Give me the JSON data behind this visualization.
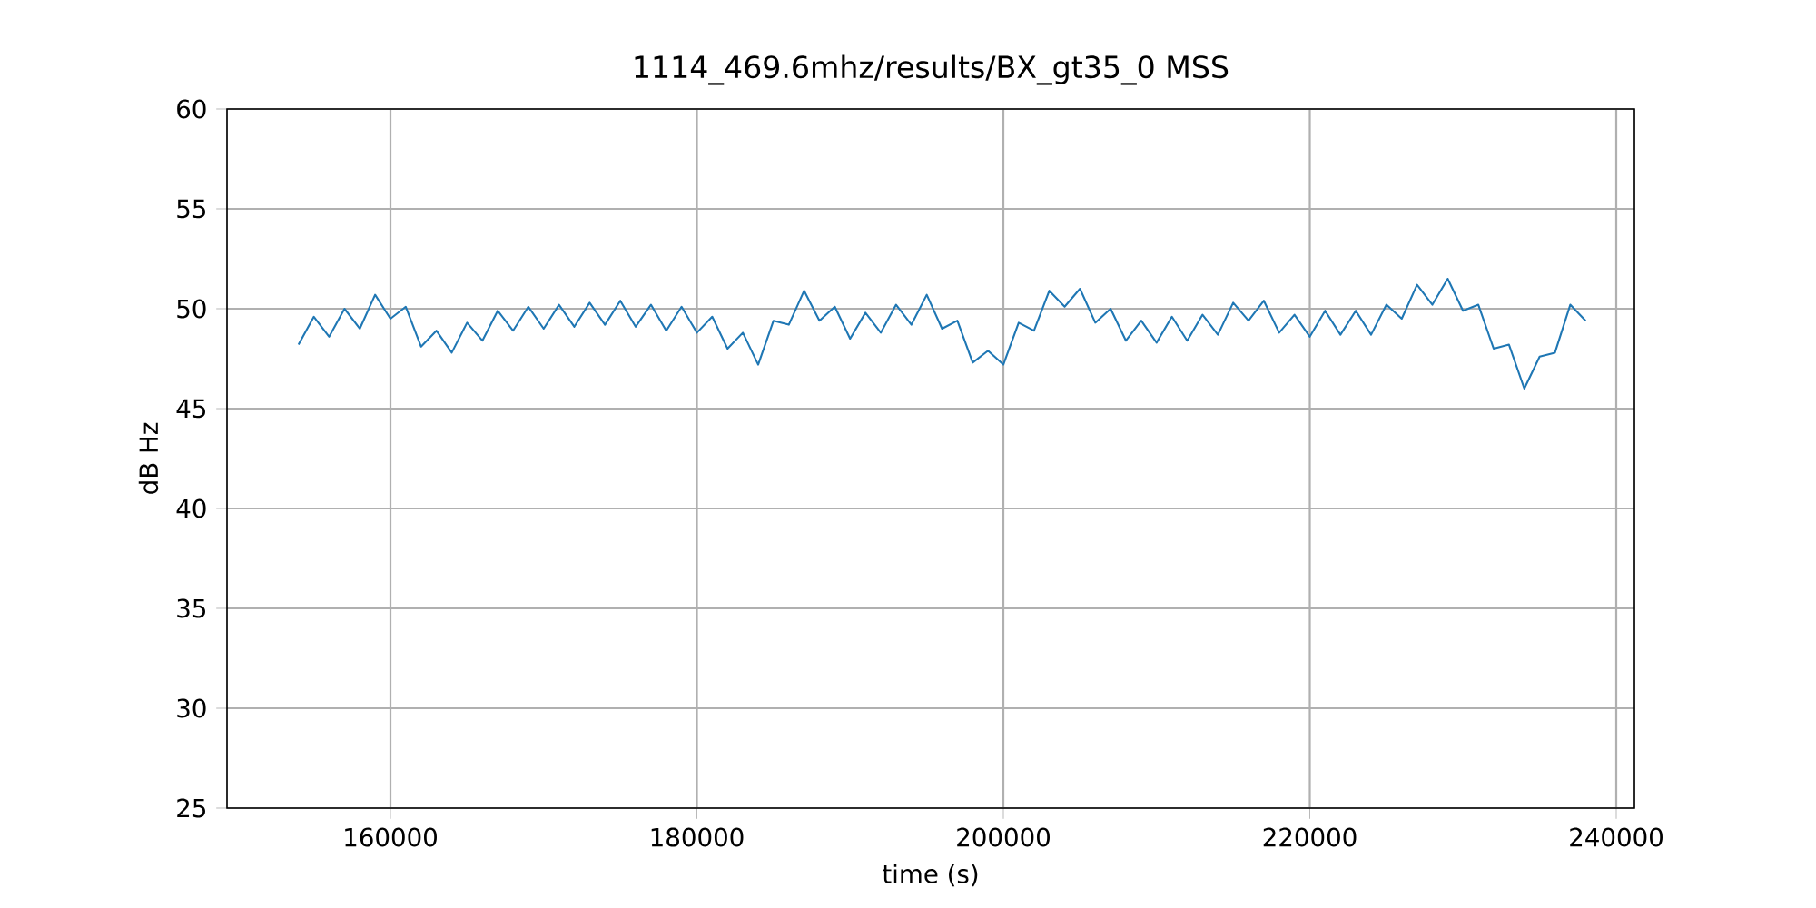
{
  "chart_data": {
    "type": "line",
    "title": "1114_469.6mhz/results/BX_gt35_0 MSS",
    "xlabel": "time (s)",
    "ylabel": "dB Hz",
    "x": [
      154000,
      155000,
      156000,
      157000,
      158000,
      159000,
      160000,
      161000,
      162000,
      163000,
      164000,
      165000,
      166000,
      167000,
      168000,
      169000,
      170000,
      171000,
      172000,
      173000,
      174000,
      175000,
      176000,
      177000,
      178000,
      179000,
      180000,
      181000,
      182000,
      183000,
      184000,
      185000,
      186000,
      187000,
      188000,
      189000,
      190000,
      191000,
      192000,
      193000,
      194000,
      195000,
      196000,
      197000,
      198000,
      199000,
      200000,
      201000,
      202000,
      203000,
      204000,
      205000,
      206000,
      207000,
      208000,
      209000,
      210000,
      211000,
      212000,
      213000,
      214000,
      215000,
      216000,
      217000,
      218000,
      219000,
      220000,
      221000,
      222000,
      223000,
      224000,
      225000,
      226000,
      227000,
      228000,
      229000,
      230000,
      231000,
      232000,
      233000,
      234000,
      235000,
      236000,
      237000,
      238000
    ],
    "series": [
      {
        "color": "#1f77b4",
        "values": [
          48.2,
          49.6,
          48.6,
          50.0,
          49.0,
          50.7,
          49.5,
          50.1,
          48.1,
          48.9,
          47.8,
          49.3,
          48.4,
          49.9,
          48.9,
          50.1,
          49.0,
          50.2,
          49.1,
          50.3,
          49.2,
          50.4,
          49.1,
          50.2,
          48.9,
          50.1,
          48.8,
          49.6,
          48.0,
          48.8,
          47.2,
          49.4,
          49.2,
          50.9,
          49.4,
          50.1,
          48.5,
          49.8,
          48.8,
          50.2,
          49.2,
          50.7,
          49.0,
          49.4,
          47.3,
          47.9,
          47.2,
          49.3,
          48.9,
          50.9,
          50.1,
          51.0,
          49.3,
          50.0,
          48.4,
          49.4,
          48.3,
          49.6,
          48.4,
          49.7,
          48.7,
          50.3,
          49.4,
          50.4,
          48.8,
          49.7,
          48.6,
          49.9,
          48.7,
          49.9,
          48.7,
          50.2,
          49.5,
          51.2,
          50.2,
          51.5,
          49.9,
          50.2,
          48.0,
          48.2,
          46.0,
          47.6,
          47.8,
          50.2,
          49.4
        ]
      }
    ],
    "xlim": [
      149333,
      241185
    ],
    "ylim": [
      25,
      60
    ],
    "xticks": [
      160000,
      180000,
      200000,
      220000,
      240000
    ],
    "yticks": [
      25,
      30,
      35,
      40,
      45,
      50,
      55,
      60
    ],
    "grid": true,
    "marker": "none",
    "line_style": "solid"
  }
}
